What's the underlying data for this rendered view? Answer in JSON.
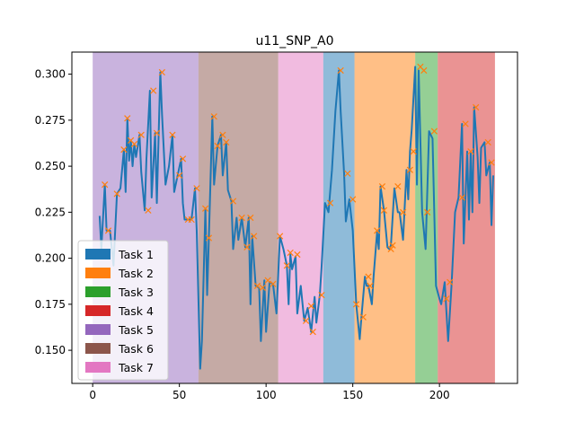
{
  "chart_data": {
    "type": "line",
    "title": "u11_SNP_A0",
    "xlabel": "",
    "ylabel": "",
    "xlim": [
      -12,
      245
    ],
    "ylim": [
      0.132,
      0.312
    ],
    "x_ticks": [
      0,
      50,
      100,
      150,
      200
    ],
    "x_tick_labels": [
      "0",
      "50",
      "100",
      "150",
      "200"
    ],
    "y_ticks": [
      0.15,
      0.175,
      0.2,
      0.225,
      0.25,
      0.275,
      0.3
    ],
    "y_tick_labels": [
      "0.150",
      "0.175",
      "0.200",
      "0.225",
      "0.250",
      "0.275",
      "0.300"
    ],
    "grid": false,
    "legend_placement": "lower-left",
    "legend": [
      {
        "label": "Task 1",
        "color": "#1f77b4"
      },
      {
        "label": "Task 2",
        "color": "#ff7f0e"
      },
      {
        "label": "Task 3",
        "color": "#2ca02c"
      },
      {
        "label": "Task 4",
        "color": "#d62728"
      },
      {
        "label": "Task 5",
        "color": "#9467bd"
      },
      {
        "label": "Task 6",
        "color": "#8c564b"
      },
      {
        "label": "Task 7",
        "color": "#e377c2"
      }
    ],
    "regions": [
      {
        "task": "Task 5",
        "x_start": 0,
        "x_end": 61,
        "color": "#9467bd"
      },
      {
        "task": "Task 6",
        "x_start": 61,
        "x_end": 107,
        "color": "#8c564b"
      },
      {
        "task": "Task 7",
        "x_start": 107,
        "x_end": 133,
        "color": "#e377c2"
      },
      {
        "task": "Task 1",
        "x_start": 133,
        "x_end": 151,
        "color": "#1f77b4"
      },
      {
        "task": "Task 2",
        "x_start": 151,
        "x_end": 186,
        "color": "#ff7f0e"
      },
      {
        "task": "Task 3",
        "x_start": 186,
        "x_end": 199,
        "color": "#2ca02c"
      },
      {
        "task": "Task 4",
        "x_start": 199,
        "x_end": 232,
        "color": "#d62728"
      }
    ],
    "series": [
      {
        "line_color": "#1f77b4",
        "marker_color": "#ff7f0e",
        "points": [
          [
            4,
            0.223
          ],
          [
            5,
            0.205
          ],
          [
            7,
            0.24
          ],
          [
            8,
            0.215
          ],
          [
            10,
            0.215
          ],
          [
            12,
            0.196
          ],
          [
            14,
            0.235
          ],
          [
            16,
            0.238
          ],
          [
            18,
            0.259
          ],
          [
            19,
            0.236
          ],
          [
            20,
            0.276
          ],
          [
            21,
            0.253
          ],
          [
            22,
            0.264
          ],
          [
            23,
            0.25
          ],
          [
            24,
            0.262
          ],
          [
            25,
            0.255
          ],
          [
            27,
            0.267
          ],
          [
            28,
            0.247
          ],
          [
            30,
            0.226
          ],
          [
            31,
            0.254
          ],
          [
            33,
            0.291
          ],
          [
            34,
            0.233
          ],
          [
            36,
            0.268
          ],
          [
            37,
            0.23
          ],
          [
            39,
            0.301
          ],
          [
            40,
            0.278
          ],
          [
            42,
            0.24
          ],
          [
            44,
            0.25
          ],
          [
            46,
            0.267
          ],
          [
            47,
            0.236
          ],
          [
            49,
            0.245
          ],
          [
            51,
            0.254
          ],
          [
            52,
            0.23
          ],
          [
            53,
            0.221
          ],
          [
            55,
            0.221
          ],
          [
            57,
            0.221
          ],
          [
            59,
            0.238
          ],
          [
            60,
            0.215
          ],
          [
            62,
            0.14
          ],
          [
            63,
            0.155
          ],
          [
            65,
            0.227
          ],
          [
            66,
            0.18
          ],
          [
            67,
            0.211
          ],
          [
            69,
            0.277
          ],
          [
            70,
            0.24
          ],
          [
            72,
            0.261
          ],
          [
            74,
            0.267
          ],
          [
            75,
            0.245
          ],
          [
            77,
            0.263
          ],
          [
            78,
            0.237
          ],
          [
            80,
            0.231
          ],
          [
            81,
            0.205
          ],
          [
            83,
            0.222
          ],
          [
            84,
            0.21
          ],
          [
            86,
            0.222
          ],
          [
            88,
            0.206
          ],
          [
            90,
            0.222
          ],
          [
            91,
            0.175
          ],
          [
            92,
            0.212
          ],
          [
            94,
            0.185
          ],
          [
            96,
            0.184
          ],
          [
            97,
            0.155
          ],
          [
            99,
            0.188
          ],
          [
            100,
            0.16
          ],
          [
            102,
            0.187
          ],
          [
            104,
            0.186
          ],
          [
            106,
            0.17
          ],
          [
            108,
            0.212
          ],
          [
            110,
            0.205
          ],
          [
            112,
            0.196
          ],
          [
            113,
            0.175
          ],
          [
            114,
            0.202
          ],
          [
            115,
            0.194
          ],
          [
            117,
            0.201
          ],
          [
            118,
            0.17
          ],
          [
            120,
            0.185
          ],
          [
            122,
            0.166
          ],
          [
            124,
            0.173
          ],
          [
            126,
            0.16
          ],
          [
            128,
            0.179
          ],
          [
            129,
            0.165
          ],
          [
            131,
            0.18
          ],
          [
            132,
            0.195
          ],
          [
            134,
            0.23
          ],
          [
            136,
            0.225
          ],
          [
            138,
            0.248
          ],
          [
            140,
            0.28
          ],
          [
            142,
            0.302
          ],
          [
            143,
            0.28
          ],
          [
            145,
            0.246
          ],
          [
            146,
            0.22
          ],
          [
            148,
            0.232
          ],
          [
            150,
            0.215
          ],
          [
            152,
            0.175
          ],
          [
            154,
            0.156
          ],
          [
            155,
            0.168
          ],
          [
            157,
            0.19
          ],
          [
            158,
            0.185
          ],
          [
            159,
            0.185
          ],
          [
            161,
            0.175
          ],
          [
            162,
            0.19
          ],
          [
            164,
            0.214
          ],
          [
            165,
            0.205
          ],
          [
            166,
            0.239
          ],
          [
            168,
            0.226
          ],
          [
            170,
            0.206
          ],
          [
            171,
            0.205
          ],
          [
            172,
            0.207
          ],
          [
            174,
            0.238
          ],
          [
            176,
            0.225
          ],
          [
            177,
            0.225
          ],
          [
            179,
            0.21
          ],
          [
            181,
            0.248
          ],
          [
            182,
            0.232
          ],
          [
            183,
            0.258
          ],
          [
            184,
            0.27
          ],
          [
            186,
            0.304
          ],
          [
            187,
            0.24
          ],
          [
            188,
            0.302
          ],
          [
            190,
            0.225
          ],
          [
            192,
            0.205
          ],
          [
            194,
            0.269
          ],
          [
            196,
            0.265
          ],
          [
            198,
            0.185
          ],
          [
            200,
            0.178
          ],
          [
            201,
            0.175
          ],
          [
            203,
            0.187
          ],
          [
            205,
            0.155
          ],
          [
            207,
            0.186
          ],
          [
            209,
            0.225
          ],
          [
            211,
            0.233
          ],
          [
            213,
            0.273
          ],
          [
            214,
            0.208
          ],
          [
            216,
            0.258
          ],
          [
            217,
            0.221
          ],
          [
            218,
            0.257
          ],
          [
            219,
            0.225
          ],
          [
            220,
            0.282
          ],
          [
            222,
            0.255
          ],
          [
            223,
            0.23
          ],
          [
            224,
            0.26
          ],
          [
            226,
            0.263
          ],
          [
            227,
            0.245
          ],
          [
            229,
            0.252
          ],
          [
            230,
            0.218
          ],
          [
            231,
            0.245
          ]
        ],
        "markers": [
          [
            7,
            0.24
          ],
          [
            9,
            0.215
          ],
          [
            14,
            0.235
          ],
          [
            18,
            0.259
          ],
          [
            20,
            0.276
          ],
          [
            22,
            0.264
          ],
          [
            24,
            0.262
          ],
          [
            28,
            0.267
          ],
          [
            32,
            0.226
          ],
          [
            35,
            0.291
          ],
          [
            37,
            0.268
          ],
          [
            40,
            0.301
          ],
          [
            46,
            0.267
          ],
          [
            50,
            0.245
          ],
          [
            52,
            0.254
          ],
          [
            55,
            0.221
          ],
          [
            57,
            0.221
          ],
          [
            60,
            0.238
          ],
          [
            65,
            0.227
          ],
          [
            67,
            0.211
          ],
          [
            70,
            0.277
          ],
          [
            72,
            0.261
          ],
          [
            75,
            0.267
          ],
          [
            77,
            0.263
          ],
          [
            81,
            0.231
          ],
          [
            86,
            0.222
          ],
          [
            89,
            0.206
          ],
          [
            91,
            0.222
          ],
          [
            93,
            0.212
          ],
          [
            95,
            0.185
          ],
          [
            98,
            0.184
          ],
          [
            101,
            0.188
          ],
          [
            104,
            0.186
          ],
          [
            108,
            0.212
          ],
          [
            112,
            0.196
          ],
          [
            114,
            0.203
          ],
          [
            118,
            0.202
          ],
          [
            123,
            0.166
          ],
          [
            126,
            0.174
          ],
          [
            127,
            0.16
          ],
          [
            132,
            0.18
          ],
          [
            137,
            0.23
          ],
          [
            143,
            0.302
          ],
          [
            147,
            0.246
          ],
          [
            150,
            0.232
          ],
          [
            152,
            0.175
          ],
          [
            156,
            0.168
          ],
          [
            159,
            0.19
          ],
          [
            160,
            0.185
          ],
          [
            164,
            0.215
          ],
          [
            167,
            0.239
          ],
          [
            168,
            0.226
          ],
          [
            172,
            0.205
          ],
          [
            173,
            0.207
          ],
          [
            176,
            0.239
          ],
          [
            179,
            0.225
          ],
          [
            183,
            0.248
          ],
          [
            185,
            0.258
          ],
          [
            189,
            0.304
          ],
          [
            191,
            0.302
          ],
          [
            193,
            0.225
          ],
          [
            197,
            0.269
          ],
          [
            204,
            0.178
          ],
          [
            206,
            0.187
          ],
          [
            213,
            0.233
          ],
          [
            215,
            0.273
          ],
          [
            218,
            0.258
          ],
          [
            221,
            0.282
          ],
          [
            228,
            0.263
          ],
          [
            230,
            0.252
          ]
        ]
      }
    ]
  }
}
